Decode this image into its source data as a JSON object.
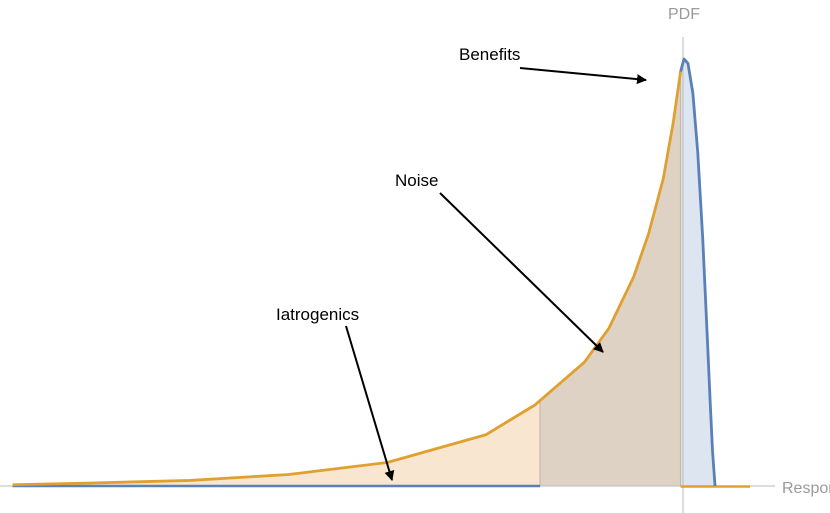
{
  "chart_data": {
    "type": "area",
    "title": "",
    "xlabel": "Response",
    "ylabel": "PDF",
    "xlim": [
      -14,
      1
    ],
    "ylim": [
      0,
      1.05
    ],
    "grid": false,
    "legend": "none",
    "series": [
      {
        "color": "#e0a030",
        "x": [
          -13.6,
          -12,
          -10,
          -8,
          -6,
          -4,
          -3,
          -2,
          -1.5,
          -1,
          -0.7,
          -0.4,
          -0.2,
          -0.05
        ],
        "values": [
          0.003,
          0.007,
          0.013,
          0.027,
          0.055,
          0.12,
          0.19,
          0.29,
          0.37,
          0.49,
          0.59,
          0.72,
          0.85,
          0.97
        ]
      },
      {
        "color": "#5a80b8",
        "x": [
          -0.05,
          0.02,
          0.1,
          0.2,
          0.3,
          0.4,
          0.5,
          0.55,
          0.6,
          0.65
        ],
        "values": [
          0.97,
          1.0,
          0.99,
          0.92,
          0.78,
          0.58,
          0.33,
          0.2,
          0.08,
          0.0
        ]
      }
    ],
    "regions": [
      {
        "label": "Iatrogenics",
        "from": -13.6,
        "to": -2.9
      },
      {
        "label": "Noise",
        "from": -2.9,
        "to": -0.05
      },
      {
        "label": "Benefits",
        "from": -0.05,
        "to": 0.65
      }
    ],
    "annotations": [
      {
        "text": "Benefits",
        "points_to": [
          -0.05,
          0.97
        ]
      },
      {
        "text": "Noise",
        "points_to": [
          -1.5,
          0.37
        ]
      },
      {
        "text": "Iatrogenics",
        "points_to": [
          -6,
          0.055
        ]
      }
    ]
  },
  "colors": {
    "tail_fill": "#f8e6d0",
    "noise_fill": "#ddd2c3",
    "benefit_fill": "#dce5f0",
    "noise_curve": "#e0a030",
    "benefit_curve": "#5a80b8",
    "axis": "#bbbbbb"
  }
}
